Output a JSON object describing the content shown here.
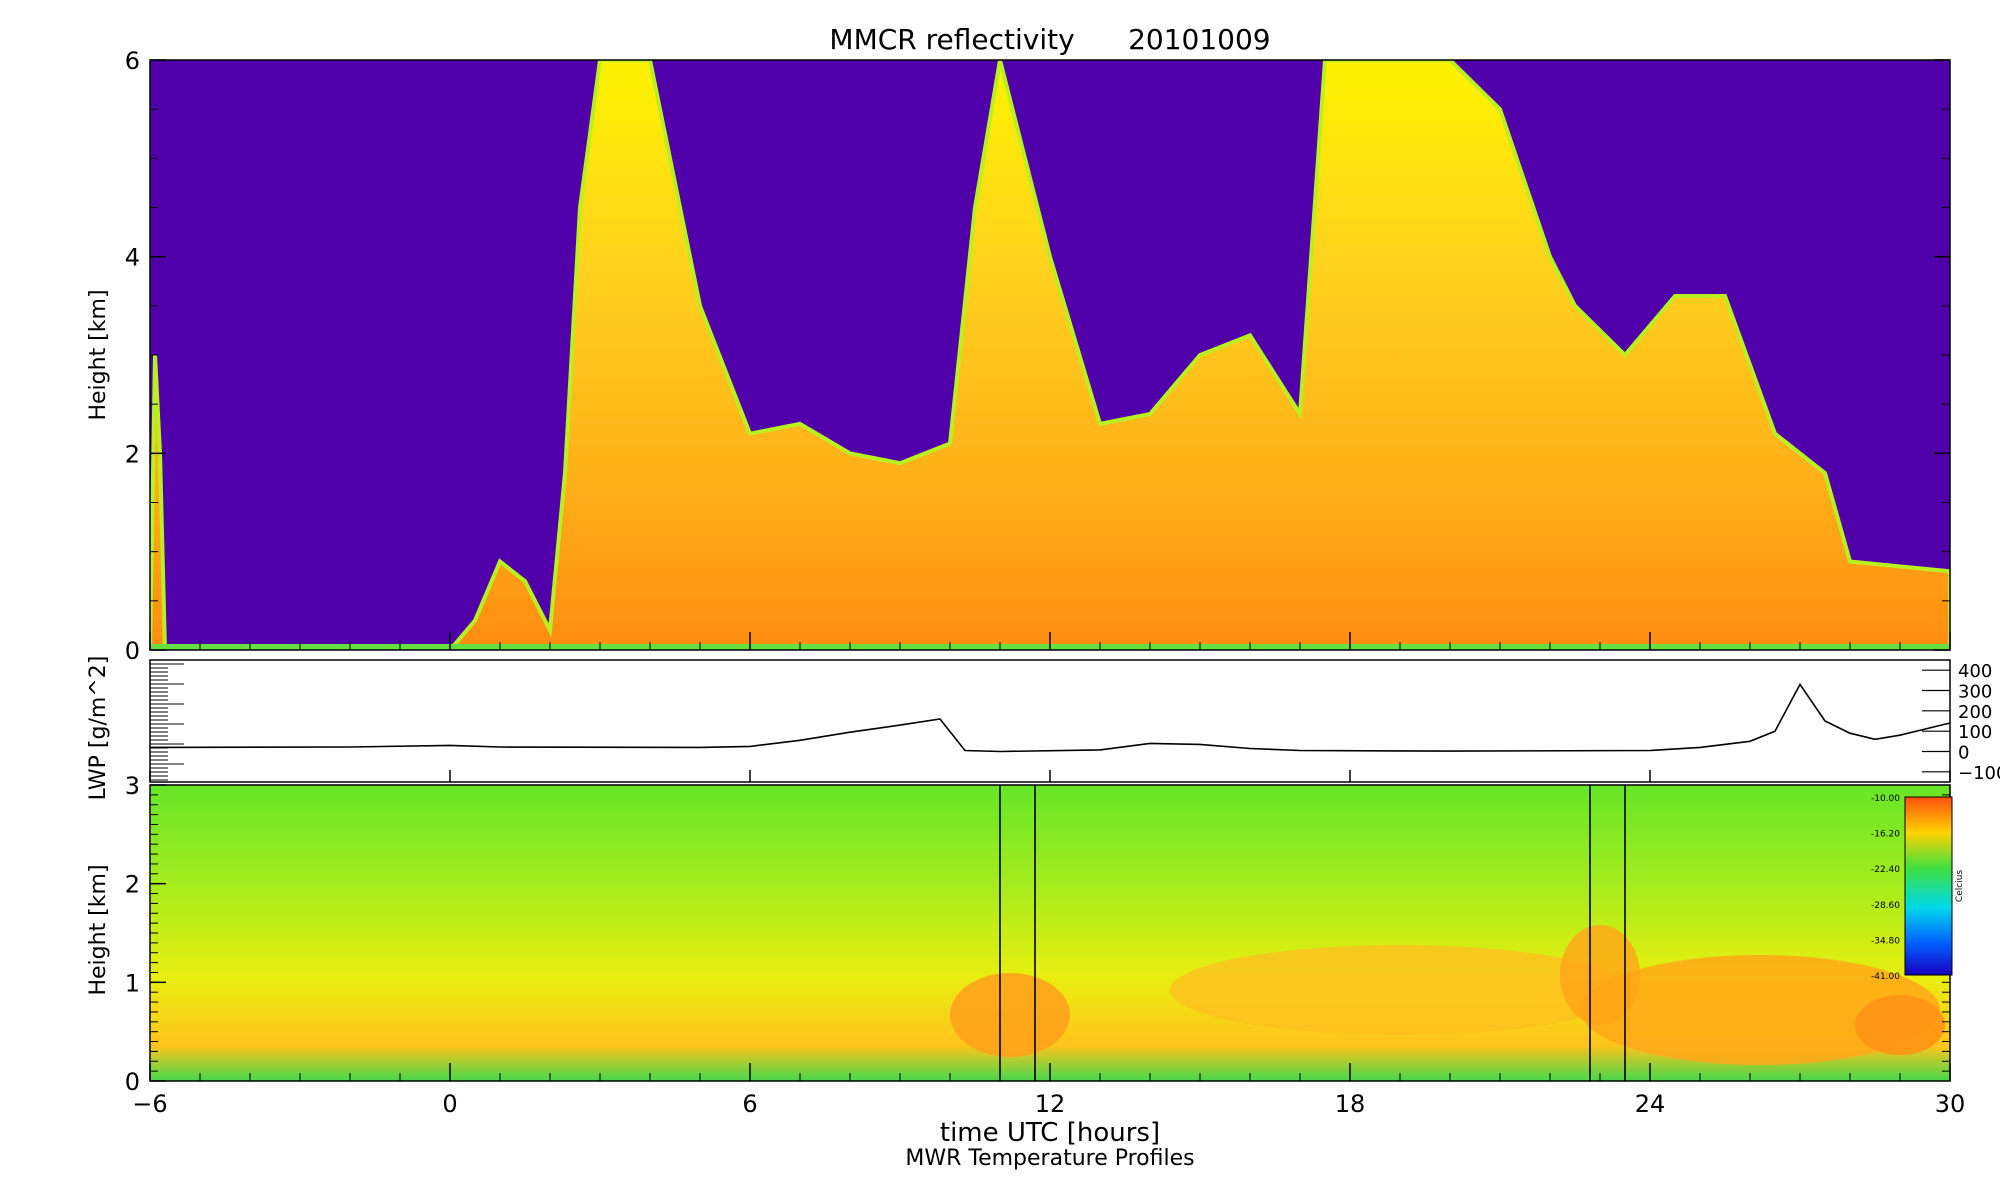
{
  "title": "MMCR reflectivity      20101009",
  "x_axis": {
    "label": "time UTC [hours]",
    "sublabel": "MWR Temperature Profiles",
    "ticks": [
      "−6",
      "0",
      "6",
      "12",
      "18",
      "24",
      "30"
    ]
  },
  "colorbar": {
    "unit": "Celcius",
    "labels": [
      "-10.00",
      "-16.20",
      "-22.40",
      "-28.60",
      "-34.80",
      "-41.00"
    ]
  },
  "chart_data": [
    {
      "type": "heatmap",
      "name": "mmcr",
      "ylabel": "Height [km]",
      "xlim": [
        -6,
        30
      ],
      "ylim": [
        0,
        6
      ],
      "yticks": [
        "0",
        "2",
        "4",
        "6"
      ],
      "background_color": "#5000a8",
      "cloud_fill": [
        {
          "t": -6.0,
          "top": 0.0
        },
        {
          "t": -5.9,
          "top": 3.0
        },
        {
          "t": -5.8,
          "top": 2.0
        },
        {
          "t": -5.7,
          "top": 0.0
        },
        {
          "t": 0.0,
          "top": 0.0
        },
        {
          "t": 0.5,
          "top": 0.3
        },
        {
          "t": 1.0,
          "top": 0.9
        },
        {
          "t": 1.5,
          "top": 0.7
        },
        {
          "t": 2.0,
          "top": 0.2
        },
        {
          "t": 2.3,
          "top": 1.8
        },
        {
          "t": 2.6,
          "top": 4.5
        },
        {
          "t": 3.0,
          "top": 6.0
        },
        {
          "t": 4.0,
          "top": 6.0
        },
        {
          "t": 5.0,
          "top": 3.5
        },
        {
          "t": 6.0,
          "top": 2.2
        },
        {
          "t": 7.0,
          "top": 2.3
        },
        {
          "t": 8.0,
          "top": 2.0
        },
        {
          "t": 9.0,
          "top": 1.9
        },
        {
          "t": 10.0,
          "top": 2.1
        },
        {
          "t": 10.5,
          "top": 4.5
        },
        {
          "t": 11.0,
          "top": 6.0
        },
        {
          "t": 12.0,
          "top": 4.0
        },
        {
          "t": 13.0,
          "top": 2.3
        },
        {
          "t": 14.0,
          "top": 2.4
        },
        {
          "t": 15.0,
          "top": 3.0
        },
        {
          "t": 16.0,
          "top": 3.2
        },
        {
          "t": 17.0,
          "top": 2.4
        },
        {
          "t": 17.5,
          "top": 6.0
        },
        {
          "t": 20.0,
          "top": 6.0
        },
        {
          "t": 21.0,
          "top": 5.5
        },
        {
          "t": 22.0,
          "top": 4.0
        },
        {
          "t": 22.5,
          "top": 3.5
        },
        {
          "t": 23.5,
          "top": 3.0
        },
        {
          "t": 24.5,
          "top": 3.6
        },
        {
          "t": 25.5,
          "top": 3.6
        },
        {
          "t": 26.5,
          "top": 2.2
        },
        {
          "t": 27.5,
          "top": 1.8
        },
        {
          "t": 28.0,
          "top": 0.9
        },
        {
          "t": 30.0,
          "top": 0.8
        }
      ]
    },
    {
      "type": "line",
      "name": "lwp",
      "ylabel": "LWP [g/m^2]",
      "xlim": [
        -6,
        30
      ],
      "ylim": [
        -150,
        450
      ],
      "right_ticks": [
        "400",
        "300",
        "200",
        "100",
        "0",
        "−100"
      ],
      "x": [
        -6,
        -2,
        0,
        1,
        5,
        6,
        7,
        8,
        9,
        9.8,
        10.3,
        11,
        13,
        14,
        15,
        16,
        17,
        20,
        24,
        25,
        26,
        26.5,
        27,
        27.5,
        28,
        28.5,
        29,
        30
      ],
      "y": [
        20,
        22,
        30,
        22,
        20,
        25,
        55,
        95,
        130,
        160,
        5,
        0,
        8,
        40,
        35,
        15,
        5,
        2,
        5,
        20,
        50,
        100,
        330,
        150,
        90,
        60,
        80,
        140
      ]
    },
    {
      "type": "heatmap",
      "name": "mwr_temperature",
      "ylabel": "Height [km]",
      "xlim": [
        -6,
        30
      ],
      "ylim": [
        0,
        3
      ],
      "yticks": [
        "0",
        "1",
        "2",
        "3"
      ],
      "zlim": [
        -41.0,
        -10.0
      ],
      "marker_lines": [
        11.0,
        11.7,
        22.8,
        23.5
      ]
    }
  ]
}
